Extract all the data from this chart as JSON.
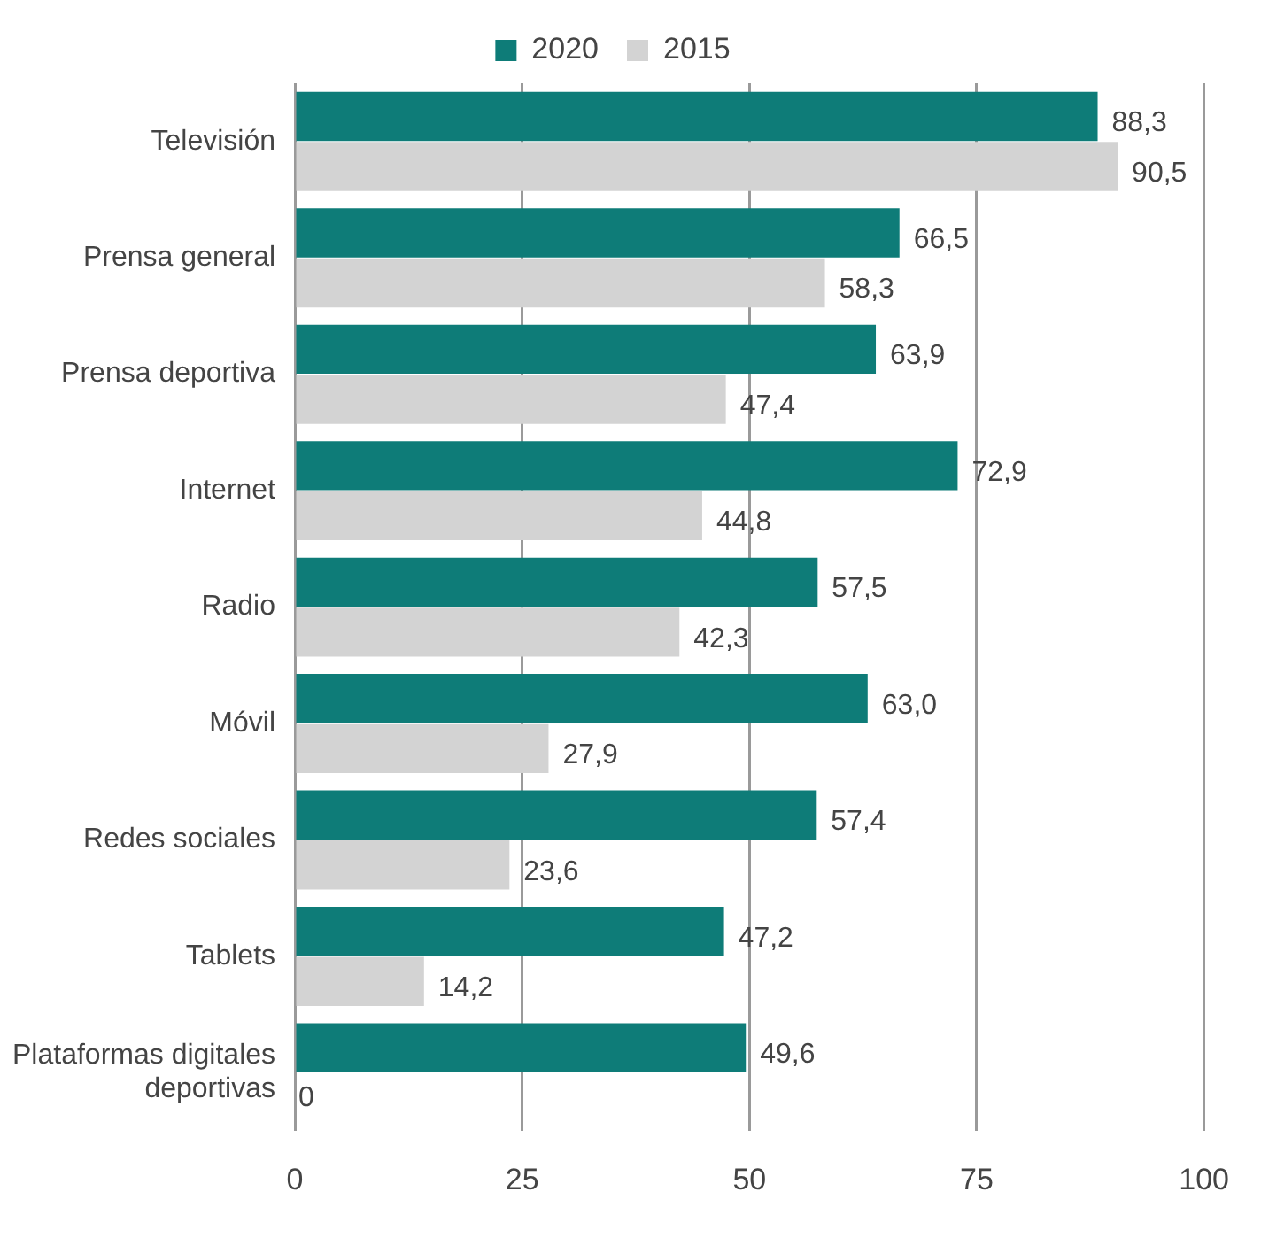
{
  "chart_data": {
    "type": "bar",
    "orientation": "horizontal",
    "categories": [
      "Televisión",
      "Prensa general",
      "Prensa deportiva",
      "Internet",
      "Radio",
      "Móvil",
      "Redes sociales",
      "Tablets",
      "Plataformas digitales deportivas"
    ],
    "series": [
      {
        "name": "2020",
        "color": "#0e7c78",
        "values": [
          88.3,
          66.5,
          63.9,
          72.9,
          57.5,
          63.0,
          57.4,
          47.2,
          49.6
        ],
        "value_labels": [
          "88,3",
          "66,5",
          "63,9",
          "72,9",
          "57,5",
          "63,0",
          "57,4",
          "47,2",
          "49,6"
        ]
      },
      {
        "name": "2015",
        "color": "#d3d3d3",
        "values": [
          90.5,
          58.3,
          47.4,
          44.8,
          42.3,
          27.9,
          23.6,
          14.2,
          0
        ],
        "value_labels": [
          "90,5",
          "58,3",
          "47,4",
          "44,8",
          "42,3",
          "27,9",
          "23,6",
          "14,2",
          "0"
        ]
      }
    ],
    "xlim": [
      0,
      100
    ],
    "xticks": [
      0,
      25,
      50,
      75,
      100
    ],
    "grid": "x",
    "legend": "top"
  }
}
